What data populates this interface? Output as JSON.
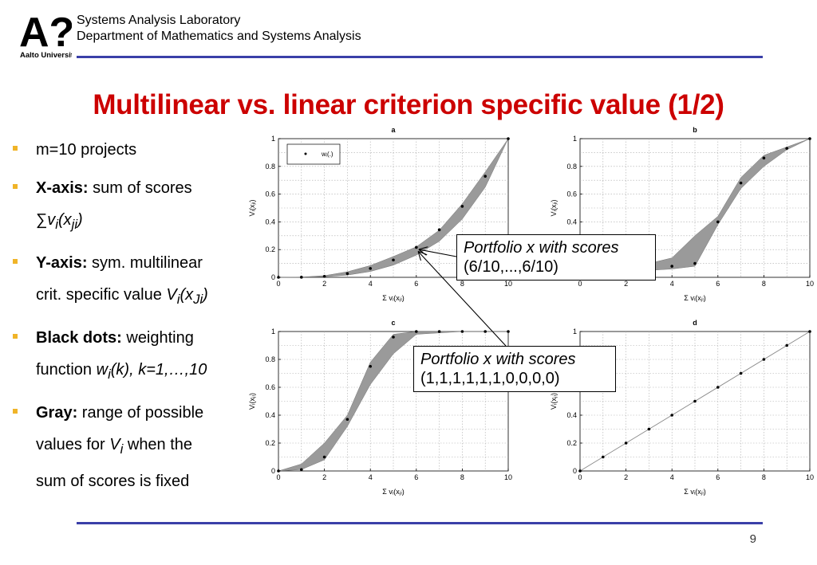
{
  "header": {
    "logo_text": "Aalto University",
    "lab_line1": "Systems Analysis Laboratory",
    "lab_line2": "Department of Mathematics and Systems Analysis"
  },
  "title": "Multilinear vs. linear criterion specific value (1/2)",
  "bullets": [
    {
      "plain": "m=10 projects"
    },
    {
      "bold": "X-axis:",
      "text": " sum of scores",
      "sub_line": "∑v"
    },
    {
      "bold": "Y-axis:",
      "text": " sym. multilinear",
      "line2": "crit. specific value "
    },
    {
      "bold": "Black dots:",
      "text": " weighting",
      "line2": "function "
    },
    {
      "bold": "Gray:",
      "text": " range of possible",
      "line2": "values for ",
      "line2b": " when the",
      "line3": "sum of scores is fixed"
    }
  ],
  "math": {
    "b2_v": "v",
    "b2_i": "i",
    "b2_x": "(x",
    "b2_ji": "ji",
    "b2_close": ")",
    "b3_V": "V",
    "b3_i": "i",
    "b3_x": "(x",
    "b3_Ji": "Ji",
    "b3_close": ")",
    "b4_w": "w",
    "b4_i": "i",
    "b4_rest": "(k), k=1,…,10",
    "b5_V": "V",
    "b5_i": "i"
  },
  "callouts": {
    "top_line1": "Portfolio x with scores",
    "top_line2": "(6/10,...,6/10)",
    "bottom_line1": "Portfolio x with scores",
    "bottom_line2": "(1,1,1,1,1,1,0,0,0,0)"
  },
  "page_number": "9",
  "chart_data": [
    {
      "panel": "a",
      "type": "area+scatter",
      "title": "a",
      "xlabel": "Σ v_i(x_ji)",
      "ylabel": "V_i(x_Ji)",
      "xlim": [
        0,
        10
      ],
      "ylim": [
        0,
        1
      ],
      "grid": true,
      "legend": "w_i(.)",
      "legend_position": "top-left",
      "x_ticks": [
        0,
        2,
        4,
        6,
        8,
        10
      ],
      "y_ticks": [
        0,
        0.2,
        0.4,
        0.6,
        0.8,
        1
      ],
      "dots": [
        [
          0,
          0
        ],
        [
          1,
          0.001
        ],
        [
          2,
          0.007
        ],
        [
          3,
          0.027
        ],
        [
          4,
          0.064
        ],
        [
          5,
          0.125
        ],
        [
          6,
          0.216
        ],
        [
          7,
          0.343
        ],
        [
          8,
          0.512
        ],
        [
          9,
          0.729
        ],
        [
          10,
          1
        ]
      ],
      "band_upper": [
        [
          0,
          0
        ],
        [
          1,
          0.002
        ],
        [
          2,
          0.012
        ],
        [
          3,
          0.04
        ],
        [
          4,
          0.085
        ],
        [
          5,
          0.15
        ],
        [
          6,
          0.22
        ],
        [
          7,
          0.34
        ],
        [
          8,
          0.53
        ],
        [
          9,
          0.76
        ],
        [
          10,
          1
        ]
      ],
      "band_lower": [
        [
          0,
          0
        ],
        [
          1,
          0.0
        ],
        [
          2,
          0.004
        ],
        [
          3,
          0.016
        ],
        [
          4,
          0.042
        ],
        [
          5,
          0.088
        ],
        [
          6,
          0.16
        ],
        [
          7,
          0.26
        ],
        [
          8,
          0.42
        ],
        [
          9,
          0.65
        ],
        [
          10,
          1
        ]
      ]
    },
    {
      "panel": "b",
      "type": "area+scatter",
      "title": "b",
      "xlabel": "Σ v_i(x_ji)",
      "ylabel": "V_i(x_Ji)",
      "xlim": [
        0,
        10
      ],
      "ylim": [
        0,
        1
      ],
      "grid": true,
      "x_ticks": [
        0,
        2,
        4,
        6,
        8,
        10
      ],
      "y_ticks": [
        0,
        0.2,
        0.4,
        0.6,
        0.8,
        1
      ],
      "dots": [
        [
          1,
          0.05
        ],
        [
          2,
          0.06
        ],
        [
          3,
          0.07
        ],
        [
          4,
          0.08
        ],
        [
          5,
          0.1
        ],
        [
          6,
          0.4
        ],
        [
          7,
          0.68
        ],
        [
          8,
          0.86
        ],
        [
          9,
          0.93
        ],
        [
          10,
          1
        ]
      ],
      "band_upper": [
        [
          0,
          0
        ],
        [
          1,
          0.06
        ],
        [
          2,
          0.08
        ],
        [
          3,
          0.1
        ],
        [
          4,
          0.14
        ],
        [
          5,
          0.3
        ],
        [
          6,
          0.44
        ],
        [
          7,
          0.72
        ],
        [
          8,
          0.88
        ],
        [
          9,
          0.94
        ],
        [
          10,
          1
        ]
      ],
      "band_lower": [
        [
          0,
          0
        ],
        [
          1,
          0.03
        ],
        [
          2,
          0.04
        ],
        [
          3,
          0.05
        ],
        [
          4,
          0.06
        ],
        [
          5,
          0.08
        ],
        [
          6,
          0.38
        ],
        [
          7,
          0.64
        ],
        [
          8,
          0.8
        ],
        [
          9,
          0.92
        ],
        [
          10,
          1
        ]
      ]
    },
    {
      "panel": "c",
      "type": "area+scatter",
      "title": "c",
      "xlabel": "Σ v_i(x_ji)",
      "ylabel": "V_i(x_Ji)",
      "xlim": [
        0,
        10
      ],
      "ylim": [
        0,
        1
      ],
      "grid": true,
      "x_ticks": [
        0,
        2,
        4,
        6,
        8,
        10
      ],
      "y_ticks": [
        0,
        0.2,
        0.4,
        0.6,
        0.8,
        1
      ],
      "dots": [
        [
          0,
          0
        ],
        [
          1,
          0.01
        ],
        [
          2,
          0.1
        ],
        [
          3,
          0.37
        ],
        [
          4,
          0.75
        ],
        [
          5,
          0.96
        ],
        [
          6,
          1
        ],
        [
          7,
          1
        ],
        [
          8,
          1
        ],
        [
          9,
          1
        ],
        [
          10,
          1
        ]
      ],
      "band_upper": [
        [
          0,
          0
        ],
        [
          1,
          0.05
        ],
        [
          2,
          0.2
        ],
        [
          3,
          0.4
        ],
        [
          4,
          0.78
        ],
        [
          5,
          0.98
        ],
        [
          6,
          1
        ],
        [
          7,
          1
        ],
        [
          8,
          1
        ],
        [
          9,
          1
        ],
        [
          10,
          1
        ]
      ],
      "band_lower": [
        [
          0,
          0
        ],
        [
          1,
          0.01
        ],
        [
          2,
          0.08
        ],
        [
          3,
          0.32
        ],
        [
          4,
          0.62
        ],
        [
          5,
          0.84
        ],
        [
          6,
          0.98
        ],
        [
          7,
          0.99
        ],
        [
          8,
          1
        ],
        [
          9,
          1
        ],
        [
          10,
          1
        ]
      ]
    },
    {
      "panel": "d",
      "type": "line+scatter",
      "title": "d",
      "xlabel": "Σ v_i(x_ji)",
      "ylabel": "V_i(x_Ji)",
      "xlim": [
        0,
        10
      ],
      "ylim": [
        0,
        1
      ],
      "grid": true,
      "x_ticks": [
        0,
        2,
        4,
        6,
        8,
        10
      ],
      "y_ticks": [
        0,
        0.2,
        0.4,
        0.6,
        0.8,
        1
      ],
      "dots": [
        [
          0,
          0
        ],
        [
          1,
          0.1
        ],
        [
          2,
          0.2
        ],
        [
          3,
          0.3
        ],
        [
          4,
          0.4
        ],
        [
          5,
          0.5
        ],
        [
          6,
          0.6
        ],
        [
          7,
          0.7
        ],
        [
          8,
          0.8
        ],
        [
          9,
          0.9
        ],
        [
          10,
          1
        ]
      ],
      "band_upper": [
        [
          0,
          0
        ],
        [
          10,
          1
        ]
      ],
      "band_lower": [
        [
          0,
          0
        ],
        [
          10,
          1
        ]
      ]
    }
  ]
}
